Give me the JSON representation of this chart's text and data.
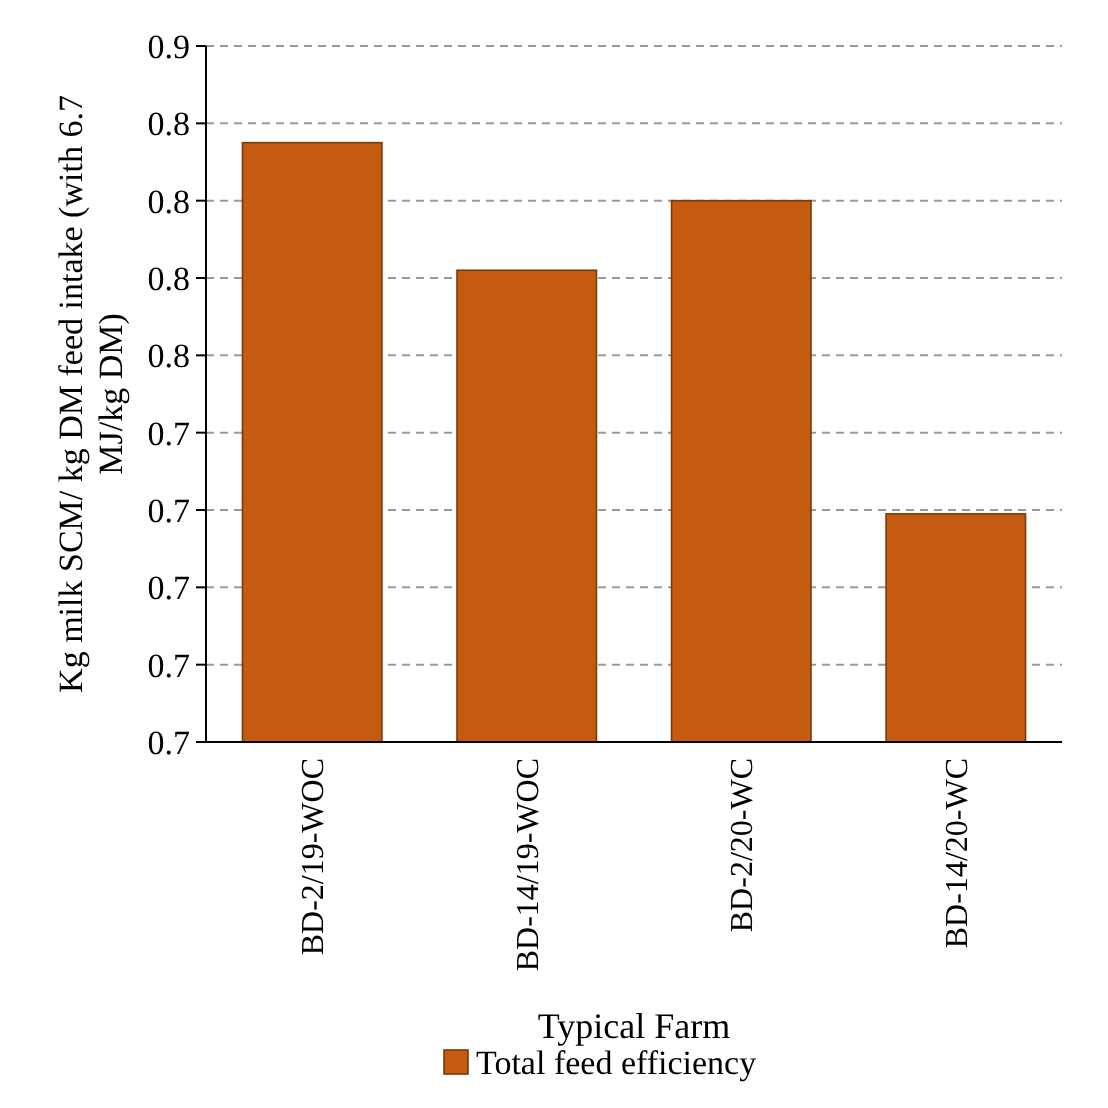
{
  "chart_data": {
    "type": "bar",
    "xlabel": "Typical Farm",
    "ylabel": "Kg milk SCM/ kg DM feed intake (with 6.7 MJ/kg DM)",
    "categories": [
      "BD-2/19-WOC",
      "BD-14/19-WOC",
      "BD-2/20-WC",
      "BD-14/20-WC"
    ],
    "series": [
      {
        "name": "Total feed efficiency",
        "color": "#c55a11",
        "values": [
          0.825,
          0.792,
          0.81,
          0.729
        ]
      }
    ],
    "ylim": [
      0.67,
      0.85
    ],
    "yticks": [
      {
        "value": 0.67,
        "label": "0.7"
      },
      {
        "value": 0.69,
        "label": "0.7"
      },
      {
        "value": 0.71,
        "label": "0.7"
      },
      {
        "value": 0.73,
        "label": "0.7"
      },
      {
        "value": 0.75,
        "label": "0.7"
      },
      {
        "value": 0.77,
        "label": "0.8"
      },
      {
        "value": 0.79,
        "label": "0.8"
      },
      {
        "value": 0.81,
        "label": "0.8"
      },
      {
        "value": 0.83,
        "label": "0.8"
      },
      {
        "value": 0.85,
        "label": "0.9"
      }
    ],
    "grid": "y",
    "legend": "bottom"
  }
}
